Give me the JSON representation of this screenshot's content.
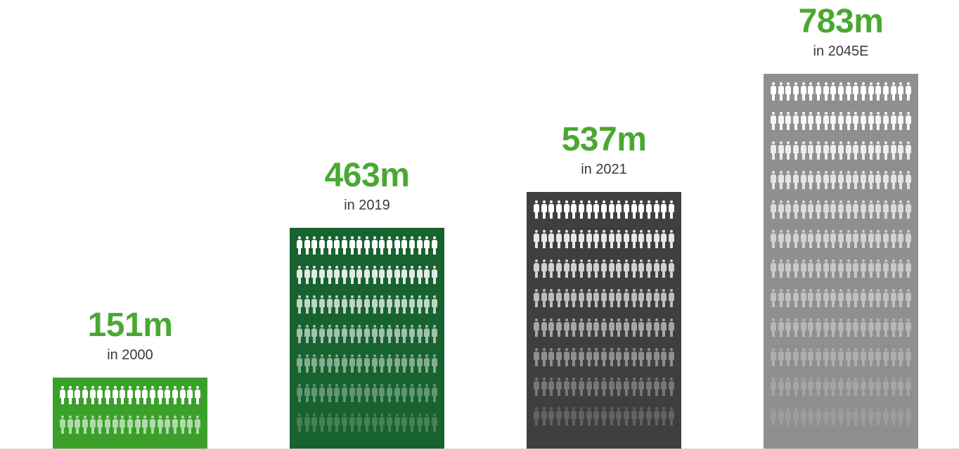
{
  "chart_data": {
    "type": "bar",
    "title": "",
    "xlabel": "",
    "ylabel": "",
    "ylim": [
      0,
      800
    ],
    "grid": false,
    "legend": "none",
    "categories": [
      "in 2000",
      "in 2019",
      "in 2021",
      "in 2045E"
    ],
    "values": [
      151,
      463,
      537,
      783
    ],
    "value_labels": [
      "151m",
      "463m",
      "537m",
      "783m"
    ],
    "bar_colors": [
      "#3aa02a",
      "#17622e",
      "#3f3f41",
      "#8f8f91"
    ],
    "value_label_color": "#4aa832"
  }
}
